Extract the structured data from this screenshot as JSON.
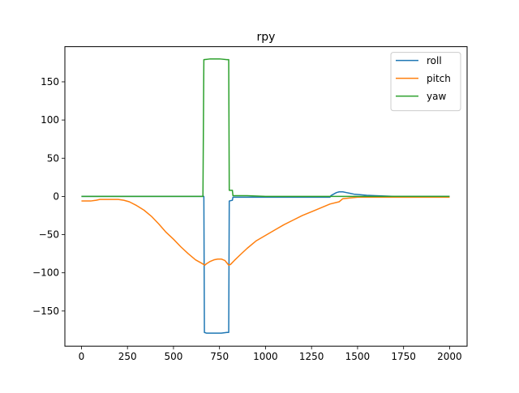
{
  "chart_data": {
    "type": "line",
    "title": "rpy",
    "xlabel": "",
    "ylabel": "",
    "xlim": [
      -90,
      2095
    ],
    "ylim": [
      -196,
      196
    ],
    "x_ticks": [
      0,
      250,
      500,
      750,
      1000,
      1250,
      1500,
      1750,
      2000
    ],
    "y_ticks": [
      -150,
      -100,
      -50,
      0,
      50,
      100,
      150
    ],
    "x_tick_labels": [
      "0",
      "250",
      "500",
      "750",
      "1000",
      "1250",
      "1500",
      "1750",
      "2000"
    ],
    "y_tick_labels": [
      "−150",
      "−100",
      "−50",
      "0",
      "50",
      "100",
      "150"
    ],
    "grid": false,
    "legend_position": "top-right",
    "series": [
      {
        "name": "roll",
        "color": "#1f77b4",
        "points": [
          [
            0,
            0
          ],
          [
            665,
            0
          ],
          [
            668,
            -178
          ],
          [
            680,
            -179
          ],
          [
            720,
            -179
          ],
          [
            760,
            -179
          ],
          [
            790,
            -178
          ],
          [
            800,
            -178
          ],
          [
            803,
            -6
          ],
          [
            820,
            -5
          ],
          [
            823,
            -1
          ],
          [
            900,
            -1
          ],
          [
            1000,
            -1
          ],
          [
            1100,
            -1
          ],
          [
            1200,
            -1
          ],
          [
            1300,
            -1
          ],
          [
            1350,
            -1
          ],
          [
            1355,
            1
          ],
          [
            1370,
            3
          ],
          [
            1385,
            5
          ],
          [
            1400,
            6
          ],
          [
            1420,
            6
          ],
          [
            1440,
            5
          ],
          [
            1460,
            4
          ],
          [
            1480,
            3
          ],
          [
            1500,
            2.5
          ],
          [
            1550,
            1.5
          ],
          [
            1600,
            1
          ],
          [
            1700,
            0
          ],
          [
            2000,
            0
          ]
        ]
      },
      {
        "name": "pitch",
        "color": "#ff7f0e",
        "points": [
          [
            0,
            -6
          ],
          [
            50,
            -6
          ],
          [
            80,
            -5
          ],
          [
            100,
            -4
          ],
          [
            150,
            -4
          ],
          [
            200,
            -4
          ],
          [
            230,
            -5
          ],
          [
            260,
            -7
          ],
          [
            300,
            -12
          ],
          [
            340,
            -18
          ],
          [
            380,
            -26
          ],
          [
            420,
            -36
          ],
          [
            460,
            -47
          ],
          [
            500,
            -56
          ],
          [
            540,
            -66
          ],
          [
            580,
            -75
          ],
          [
            620,
            -83
          ],
          [
            650,
            -87
          ],
          [
            670,
            -90
          ],
          [
            680,
            -88
          ],
          [
            700,
            -85
          ],
          [
            720,
            -83
          ],
          [
            740,
            -82
          ],
          [
            760,
            -82
          ],
          [
            780,
            -84
          ],
          [
            800,
            -90
          ],
          [
            810,
            -89
          ],
          [
            830,
            -84
          ],
          [
            860,
            -77
          ],
          [
            900,
            -68
          ],
          [
            950,
            -58
          ],
          [
            1000,
            -51
          ],
          [
            1050,
            -44
          ],
          [
            1100,
            -37
          ],
          [
            1150,
            -31
          ],
          [
            1200,
            -25
          ],
          [
            1250,
            -20
          ],
          [
            1300,
            -15
          ],
          [
            1350,
            -10
          ],
          [
            1400,
            -7
          ],
          [
            1420,
            -3
          ],
          [
            1460,
            -2
          ],
          [
            1500,
            -1
          ],
          [
            1600,
            -1
          ],
          [
            1700,
            -1
          ],
          [
            1800,
            -1
          ],
          [
            2000,
            -1
          ]
        ]
      },
      {
        "name": "yaw",
        "color": "#2ca02c",
        "points": [
          [
            0,
            0
          ],
          [
            660,
            0
          ],
          [
            665,
            179
          ],
          [
            700,
            180
          ],
          [
            750,
            180
          ],
          [
            790,
            179
          ],
          [
            800,
            179
          ],
          [
            803,
            8
          ],
          [
            820,
            8
          ],
          [
            823,
            1
          ],
          [
            900,
            1
          ],
          [
            1000,
            0
          ],
          [
            1100,
            0
          ],
          [
            1200,
            0
          ],
          [
            1300,
            0
          ],
          [
            1400,
            0
          ],
          [
            1500,
            0
          ],
          [
            1600,
            0
          ],
          [
            1700,
            0
          ],
          [
            1800,
            0
          ],
          [
            2000,
            0
          ]
        ]
      }
    ]
  }
}
